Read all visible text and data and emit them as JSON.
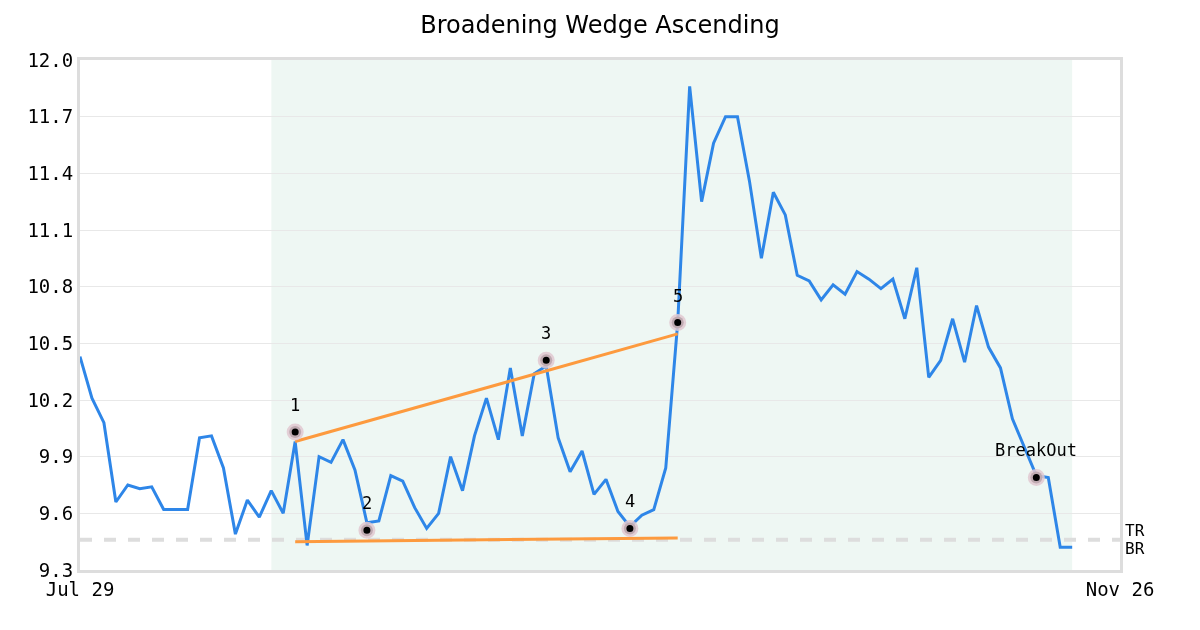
{
  "chart_data": {
    "type": "line",
    "title": "Broadening Wedge Ascending",
    "categories": [
      "Jul 29",
      null,
      null,
      null,
      null,
      null,
      null,
      null,
      null,
      null,
      null,
      null,
      null,
      null,
      null,
      null,
      null,
      null,
      null,
      null,
      null,
      null,
      null,
      null,
      null,
      null,
      null,
      null,
      null,
      null,
      null,
      null,
      null,
      null,
      null,
      null,
      null,
      null,
      null,
      null,
      null,
      null,
      null,
      null,
      null,
      null,
      null,
      null,
      null,
      null,
      null,
      null,
      null,
      null,
      null,
      null,
      null,
      null,
      null,
      null,
      null,
      null,
      null,
      null,
      null,
      null,
      null,
      null,
      null,
      null,
      null,
      null,
      null,
      null,
      null,
      null,
      null,
      null,
      null,
      null,
      null,
      null,
      null,
      null,
      null,
      null,
      null,
      "Nov 26"
    ],
    "ylim": [
      9.3,
      12.0
    ],
    "yticks": [
      9.3,
      9.6,
      9.9,
      10.2,
      10.5,
      10.8,
      11.1,
      11.4,
      11.7,
      {
        "value": 12,
        "label": "12.0"
      }
    ],
    "grid": "y",
    "ref_lines": [
      {
        "axis": "y",
        "value": 9.46,
        "label": "TR",
        "color": "#dddddd",
        "line_style": "dashed"
      }
    ],
    "annotations": [
      "BR"
    ],
    "series": [
      {
        "type": "line",
        "color": "#2e86e8",
        "values": [
          10.43,
          10.21,
          10.08,
          9.66,
          9.75,
          9.73,
          9.74,
          9.62,
          9.62,
          9.62,
          10.0,
          10.01,
          9.84,
          9.49,
          9.67,
          9.58,
          9.72,
          9.6,
          9.98,
          9.43,
          9.9,
          9.87,
          9.99,
          9.83,
          9.55,
          9.56,
          9.8,
          9.77,
          9.63,
          9.52,
          9.6,
          9.9,
          9.72,
          10.01,
          10.21,
          9.99,
          10.37,
          10.01,
          10.34,
          10.38,
          10.0,
          9.82,
          9.93,
          9.7,
          9.78,
          9.61,
          9.53,
          9.59,
          9.62,
          9.84,
          10.61,
          11.86,
          11.25,
          11.56,
          11.7,
          11.7,
          11.36,
          10.95,
          11.3,
          11.18,
          10.86,
          10.83,
          10.73,
          10.81,
          10.76,
          10.88,
          10.84,
          10.79,
          10.84,
          10.63,
          10.9,
          10.32,
          10.41,
          10.63,
          10.4,
          10.7,
          10.48,
          10.37,
          10.1,
          9.95,
          9.8,
          9.79,
          9.42,
          9.42,
          null,
          null,
          null,
          null
        ]
      },
      {
        "type": "line",
        "color": "#fd9a3e",
        "values": [
          null,
          null,
          null,
          null,
          null,
          null,
          null,
          null,
          null,
          null,
          null,
          null,
          null,
          null,
          null,
          null,
          null,
          null,
          9.98,
          null,
          null,
          null,
          null,
          null,
          null,
          null,
          null,
          null,
          null,
          null,
          null,
          null,
          null,
          null,
          null,
          null,
          null,
          null,
          null,
          null,
          null,
          null,
          null,
          null,
          null,
          null,
          null,
          null,
          null,
          null,
          10.55,
          null,
          null,
          null,
          null,
          null,
          null,
          null,
          null,
          null,
          null,
          null,
          null,
          null,
          null,
          null,
          null,
          null,
          null,
          null,
          null,
          null,
          null,
          null,
          null,
          null,
          null,
          null,
          null,
          null,
          null,
          null,
          null,
          null,
          null,
          null,
          null,
          null
        ]
      },
      {
        "type": "line",
        "color": "#fd9a3e",
        "values": [
          null,
          null,
          null,
          null,
          null,
          null,
          null,
          null,
          null,
          null,
          null,
          null,
          null,
          null,
          null,
          null,
          null,
          null,
          9.45,
          null,
          null,
          null,
          null,
          null,
          null,
          null,
          null,
          null,
          null,
          null,
          null,
          null,
          null,
          null,
          null,
          null,
          null,
          null,
          null,
          null,
          null,
          null,
          null,
          null,
          null,
          null,
          null,
          null,
          null,
          null,
          9.47,
          null,
          null,
          null,
          null,
          null,
          null,
          null,
          null,
          null,
          null,
          null,
          null,
          null,
          null,
          null,
          null,
          null,
          null,
          null,
          null,
          null,
          null,
          null,
          null,
          null,
          null,
          null,
          null,
          null,
          null,
          null,
          null,
          null,
          null,
          null,
          null,
          null
        ]
      },
      {
        "type": "scatter",
        "name": "1",
        "color": "#000000",
        "values": [
          null,
          null,
          null,
          null,
          null,
          null,
          null,
          null,
          null,
          null,
          null,
          null,
          null,
          null,
          null,
          null,
          null,
          null,
          10.03,
          null,
          null,
          null,
          null,
          null,
          null,
          null,
          null,
          null,
          null,
          null,
          null,
          null,
          null,
          null,
          null,
          null,
          null,
          null,
          null,
          null,
          null,
          null,
          null,
          null,
          null,
          null,
          null,
          null,
          null,
          null,
          null,
          null,
          null,
          null,
          null,
          null,
          null,
          null,
          null,
          null,
          null,
          null,
          null,
          null,
          null,
          null,
          null,
          null,
          null,
          null,
          null,
          null,
          null,
          null,
          null,
          null,
          null,
          null,
          null,
          null,
          null,
          null,
          null,
          null,
          null,
          null,
          null,
          null
        ]
      },
      {
        "type": "scatter",
        "name": "2",
        "color": "#000000",
        "values": [
          null,
          null,
          null,
          null,
          null,
          null,
          null,
          null,
          null,
          null,
          null,
          null,
          null,
          null,
          null,
          null,
          null,
          null,
          null,
          null,
          null,
          null,
          null,
          null,
          9.51,
          null,
          null,
          null,
          null,
          null,
          null,
          null,
          null,
          null,
          null,
          null,
          null,
          null,
          null,
          null,
          null,
          null,
          null,
          null,
          null,
          null,
          null,
          null,
          null,
          null,
          null,
          null,
          null,
          null,
          null,
          null,
          null,
          null,
          null,
          null,
          null,
          null,
          null,
          null,
          null,
          null,
          null,
          null,
          null,
          null,
          null,
          null,
          null,
          null,
          null,
          null,
          null,
          null,
          null,
          null,
          null,
          null,
          null,
          null,
          null,
          null,
          null,
          null
        ]
      },
      {
        "type": "scatter",
        "name": "3",
        "color": "#000000",
        "values": [
          null,
          null,
          null,
          null,
          null,
          null,
          null,
          null,
          null,
          null,
          null,
          null,
          null,
          null,
          null,
          null,
          null,
          null,
          null,
          null,
          null,
          null,
          null,
          null,
          null,
          null,
          null,
          null,
          null,
          null,
          null,
          null,
          null,
          null,
          null,
          null,
          null,
          null,
          null,
          10.41,
          null,
          null,
          null,
          null,
          null,
          null,
          null,
          null,
          null,
          null,
          null,
          null,
          null,
          null,
          null,
          null,
          null,
          null,
          null,
          null,
          null,
          null,
          null,
          null,
          null,
          null,
          null,
          null,
          null,
          null,
          null,
          null,
          null,
          null,
          null,
          null,
          null,
          null,
          null,
          null,
          null,
          null,
          null,
          null,
          null,
          null,
          null,
          null
        ]
      },
      {
        "type": "scatter",
        "name": "4",
        "color": "#000000",
        "values": [
          null,
          null,
          null,
          null,
          null,
          null,
          null,
          null,
          null,
          null,
          null,
          null,
          null,
          null,
          null,
          null,
          null,
          null,
          null,
          null,
          null,
          null,
          null,
          null,
          null,
          null,
          null,
          null,
          null,
          null,
          null,
          null,
          null,
          null,
          null,
          null,
          null,
          null,
          null,
          null,
          null,
          null,
          null,
          null,
          null,
          null,
          9.52,
          null,
          null,
          null,
          null,
          null,
          null,
          null,
          null,
          null,
          null,
          null,
          null,
          null,
          null,
          null,
          null,
          null,
          null,
          null,
          null,
          null,
          null,
          null,
          null,
          null,
          null,
          null,
          null,
          null,
          null,
          null,
          null,
          null,
          null,
          null,
          null,
          null,
          null,
          null,
          null,
          null
        ]
      },
      {
        "type": "scatter",
        "name": "5",
        "color": "#000000",
        "values": [
          null,
          null,
          null,
          null,
          null,
          null,
          null,
          null,
          null,
          null,
          null,
          null,
          null,
          null,
          null,
          null,
          null,
          null,
          null,
          null,
          null,
          null,
          null,
          null,
          null,
          null,
          null,
          null,
          null,
          null,
          null,
          null,
          null,
          null,
          null,
          null,
          null,
          null,
          null,
          null,
          null,
          null,
          null,
          null,
          null,
          null,
          null,
          null,
          null,
          null,
          10.61,
          null,
          null,
          null,
          null,
          null,
          null,
          null,
          null,
          null,
          null,
          null,
          null,
          null,
          null,
          null,
          null,
          null,
          null,
          null,
          null,
          null,
          null,
          null,
          null,
          null,
          null,
          null,
          null,
          null,
          null,
          null,
          null,
          null,
          null,
          null,
          null,
          null
        ]
      },
      {
        "type": "scatter",
        "name": "BreakOut",
        "color": "#000000",
        "values": [
          null,
          null,
          null,
          null,
          null,
          null,
          null,
          null,
          null,
          null,
          null,
          null,
          null,
          null,
          null,
          null,
          null,
          null,
          null,
          null,
          null,
          null,
          null,
          null,
          null,
          null,
          null,
          null,
          null,
          null,
          null,
          null,
          null,
          null,
          null,
          null,
          null,
          null,
          null,
          null,
          null,
          null,
          null,
          null,
          null,
          null,
          null,
          null,
          null,
          null,
          null,
          null,
          null,
          null,
          null,
          null,
          null,
          null,
          null,
          null,
          null,
          null,
          null,
          null,
          null,
          null,
          null,
          null,
          null,
          null,
          null,
          null,
          null,
          null,
          null,
          null,
          null,
          null,
          null,
          null,
          9.79,
          null,
          null,
          null,
          null,
          null,
          null,
          null
        ]
      }
    ]
  }
}
